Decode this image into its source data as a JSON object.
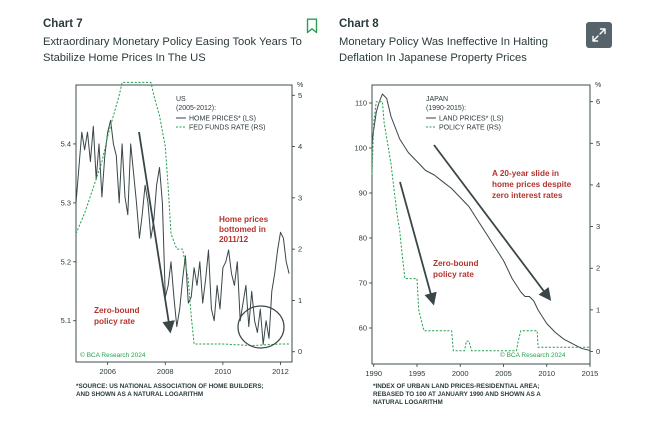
{
  "panels": [
    {
      "chart_label": "Chart 7",
      "title_line1": "Extraordinary Monetary Policy Easing Took Years To",
      "title_line2": "Stabilize Home Prices In The US",
      "source_line1": "*SOURCE: US NATIONAL ASSOCIATION OF HOME BUILDERS;",
      "source_line2": "AND SHOWN AS A NATURAL LOGARITHM",
      "copyright": "© BCA Research 2024"
    },
    {
      "chart_label": "Chart 8",
      "title_line1": "Monetary Policy Was Ineffective In Halting",
      "title_line2": "Deflation In Japanese Property Prices",
      "source_line1": "*INDEX OF URBAN LAND PRICES-RESIDENTIAL AREA;",
      "source_line2": "REBASED TO 100 AT JANUARY 1990 AND SHOWN AS A",
      "source_line3": "NATURAL LOGARITHM",
      "copyright": "© BCA Research 2024"
    }
  ],
  "colors": {
    "text": "#2a3a3c",
    "line": "#3a4648",
    "green": "#27a14f",
    "red": "#b5332e",
    "button": "#56636a"
  },
  "icons": {
    "bookmark": "bookmark-icon",
    "expand": "expand-icon"
  },
  "chart_data": [
    {
      "type": "line",
      "legend_header_1": "US",
      "legend_header_2": "(2005-2012):",
      "unit_right": "%",
      "x_ticks": [
        "2006",
        "2008",
        "2010",
        "2012"
      ],
      "y_left_ticks": [
        "5.4",
        "5.3",
        "5.2",
        "5.1"
      ],
      "y_right_ticks": [
        "5",
        "4",
        "3",
        "2",
        "1",
        "0"
      ],
      "xlim": [
        2004.9,
        2012.4
      ],
      "ylim_left": [
        5.03,
        5.5
      ],
      "ylim_right": [
        -0.2,
        5.2
      ],
      "annotation_1_line1": "Home prices",
      "annotation_1_line2": "bottomed in",
      "annotation_1_line3": "2011/12",
      "annotation_2_line1": "Zero-bound",
      "annotation_2_line2": "policy rate",
      "series": [
        {
          "name": "HOME PRICES* (LS)",
          "axis": "left",
          "style": "solid",
          "x": [
            2004.9,
            2005.0,
            2005.1,
            2005.2,
            2005.3,
            2005.4,
            2005.5,
            2005.6,
            2005.7,
            2005.8,
            2005.9,
            2006.0,
            2006.1,
            2006.2,
            2006.3,
            2006.4,
            2006.5,
            2006.6,
            2006.7,
            2006.8,
            2006.9,
            2007.0,
            2007.1,
            2007.2,
            2007.3,
            2007.4,
            2007.5,
            2007.6,
            2007.7,
            2007.8,
            2007.9,
            2008.0,
            2008.1,
            2008.2,
            2008.3,
            2008.4,
            2008.5,
            2008.6,
            2008.7,
            2008.8,
            2008.9,
            2009.0,
            2009.1,
            2009.2,
            2009.3,
            2009.4,
            2009.5,
            2009.6,
            2009.7,
            2009.8,
            2009.9,
            2010.0,
            2010.1,
            2010.2,
            2010.3,
            2010.4,
            2010.5,
            2010.6,
            2010.7,
            2010.8,
            2010.9,
            2011.0,
            2011.1,
            2011.2,
            2011.3,
            2011.4,
            2011.5,
            2011.6,
            2011.7,
            2011.8,
            2011.9,
            2012.0,
            2012.1,
            2012.2,
            2012.3
          ],
          "values": [
            5.3,
            5.36,
            5.42,
            5.39,
            5.42,
            5.37,
            5.43,
            5.34,
            5.4,
            5.31,
            5.38,
            5.42,
            5.44,
            5.4,
            5.38,
            5.3,
            5.4,
            5.31,
            5.28,
            5.4,
            5.35,
            5.3,
            5.24,
            5.28,
            5.33,
            5.3,
            5.24,
            5.27,
            5.33,
            5.36,
            5.3,
            5.14,
            5.16,
            5.2,
            5.14,
            5.09,
            5.12,
            5.17,
            5.21,
            5.13,
            5.14,
            5.19,
            5.16,
            5.2,
            5.13,
            5.17,
            5.22,
            5.12,
            5.1,
            5.16,
            5.12,
            5.19,
            5.2,
            5.22,
            5.18,
            5.16,
            5.2,
            5.1,
            5.13,
            5.16,
            5.09,
            5.15,
            5.1,
            5.08,
            5.12,
            5.06,
            5.1,
            5.07,
            5.15,
            5.18,
            5.22,
            5.25,
            5.24,
            5.2,
            5.18
          ]
        },
        {
          "name": "FED FUNDS RATE (RS)",
          "axis": "right",
          "style": "dashed",
          "x": [
            2004.9,
            2005.2,
            2005.5,
            2005.8,
            2006.0,
            2006.2,
            2006.4,
            2006.5,
            2006.8,
            2007.0,
            2007.3,
            2007.5,
            2007.6,
            2007.8,
            2008.0,
            2008.1,
            2008.2,
            2008.4,
            2008.6,
            2008.8,
            2008.9,
            2009.0,
            2010.0,
            2011.0,
            2012.0,
            2012.3
          ],
          "values": [
            2.3,
            2.7,
            3.2,
            3.7,
            4.2,
            4.6,
            5.0,
            5.25,
            5.25,
            5.25,
            5.25,
            5.25,
            5.0,
            4.6,
            4.0,
            3.2,
            2.3,
            2.0,
            2.0,
            1.4,
            0.7,
            0.15,
            0.15,
            0.12,
            0.15,
            0.15
          ]
        }
      ]
    },
    {
      "type": "line",
      "legend_header_1": "JAPAN",
      "legend_header_2": "(1990-2015):",
      "unit_right": "%",
      "x_ticks": [
        "1990",
        "1995",
        "2000",
        "2005",
        "2010",
        "2015"
      ],
      "y_left_ticks": [
        "110",
        "100",
        "90",
        "80",
        "70",
        "60"
      ],
      "y_right_ticks": [
        "6",
        "5",
        "4",
        "3",
        "2",
        "1",
        "0"
      ],
      "xlim": [
        1989.8,
        2015
      ],
      "ylim_left": [
        52,
        114
      ],
      "ylim_right": [
        -0.3,
        6.4
      ],
      "annotation_1_line1": "A 20-year slide in",
      "annotation_1_line2": "home prices despite",
      "annotation_1_line3": "zero interest rates",
      "annotation_2_line1": "Zero-bound",
      "annotation_2_line2": "policy rate",
      "series": [
        {
          "name": "LAND PRICES* (LS)",
          "axis": "left",
          "style": "solid",
          "x": [
            1989.8,
            1990.0,
            1990.3,
            1990.6,
            1991.0,
            1991.5,
            1992.0,
            1993.0,
            1994.0,
            1995.0,
            1996.0,
            1997.0,
            1998.0,
            1999.0,
            2000.0,
            2001.0,
            2002.0,
            2003.0,
            2004.0,
            2005.0,
            2006.0,
            2007.0,
            2007.5,
            2008.0,
            2008.5,
            2009.0,
            2010.0,
            2011.0,
            2012.0,
            2013.0,
            2014.0,
            2015.0
          ],
          "values": [
            101,
            104,
            108,
            110,
            112,
            111,
            107,
            102,
            99,
            97,
            95,
            94,
            92.5,
            91,
            89,
            87,
            84,
            81,
            78,
            75,
            71,
            68,
            67,
            67,
            66,
            64,
            61,
            59,
            57.5,
            56.5,
            55.5,
            55
          ]
        },
        {
          "name": "POLICY RATE (RS)",
          "axis": "right",
          "style": "dashed",
          "x": [
            1989.8,
            1990.0,
            1990.3,
            1990.5,
            1991.0,
            1991.2,
            1991.6,
            1992.0,
            1992.4,
            1992.7,
            1993.0,
            1993.2,
            1993.6,
            1995.0,
            1995.2,
            1995.5,
            1995.8,
            1996.0,
            1999.0,
            1999.2,
            2000.5,
            2000.7,
            2001.0,
            2001.3,
            2006.5,
            2006.7,
            2007.0,
            2008.9,
            2009.0,
            2015.0
          ],
          "values": [
            4.25,
            5.5,
            6.0,
            6.0,
            6.0,
            5.5,
            5.0,
            4.5,
            3.8,
            3.3,
            2.9,
            2.5,
            1.75,
            1.75,
            1.0,
            0.75,
            0.5,
            0.5,
            0.5,
            0.02,
            0.02,
            0.25,
            0.25,
            0.02,
            0.02,
            0.25,
            0.5,
            0.5,
            0.1,
            0.1
          ]
        }
      ]
    }
  ]
}
